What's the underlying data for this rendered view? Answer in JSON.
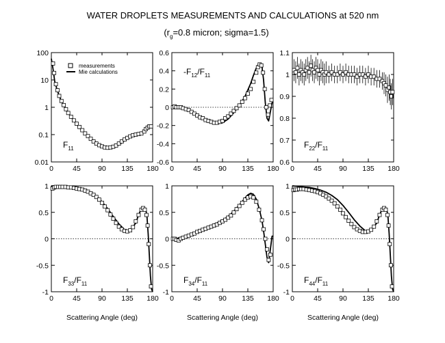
{
  "figure": {
    "title": "WATER DROPLETS MEASUREMENTS AND CALCULATIONS at 520 nm",
    "subtitle": {
      "prefix": "(r",
      "sub": "g",
      "suffix": "=0.8 micron; sigma=1.5)"
    },
    "xlabel": "Scattering Angle (deg)",
    "legend": {
      "measurements": "measurements",
      "calculations": "Mie calculations",
      "placement": "top-right of first panel"
    },
    "colors": {
      "ink": "#000000",
      "background": "#ffffff"
    }
  },
  "chart_data": [
    {
      "id": "F11",
      "type": "scatter",
      "label": {
        "main": "F",
        "sub": "11",
        "tail": "",
        "tailsub": ""
      },
      "xlim": [
        0,
        180
      ],
      "xticks": [
        0,
        45,
        90,
        135,
        180
      ],
      "ylog": true,
      "ylim": [
        0.01,
        100
      ],
      "yticks": [
        0.01,
        0.1,
        1,
        10,
        100
      ],
      "ytick_labels": [
        "0.01",
        "0.1",
        "1",
        "10",
        "100"
      ],
      "zero_line": false,
      "calc": {
        "x": [
          0,
          3,
          6,
          10,
          15,
          20,
          30,
          40,
          50,
          60,
          70,
          80,
          90,
          100,
          110,
          120,
          130,
          140,
          150,
          155,
          160,
          165,
          170,
          175,
          180
        ],
        "y": [
          60,
          25,
          9,
          4.5,
          2.3,
          1.4,
          0.62,
          0.32,
          0.18,
          0.11,
          0.072,
          0.05,
          0.038,
          0.033,
          0.034,
          0.042,
          0.06,
          0.08,
          0.1,
          0.11,
          0.12,
          0.14,
          0.18,
          0.2,
          0.2
        ]
      },
      "meas": {
        "x": [
          3,
          5,
          8,
          11,
          14,
          18,
          22,
          26,
          30,
          35,
          40,
          45,
          50,
          55,
          60,
          65,
          70,
          75,
          80,
          85,
          90,
          95,
          100,
          105,
          110,
          115,
          120,
          125,
          130,
          135,
          140,
          145,
          150,
          155,
          160,
          165,
          168,
          171,
          174,
          177
        ],
        "y": [
          40,
          18,
          7,
          4.2,
          2.6,
          1.7,
          1.2,
          0.85,
          0.62,
          0.45,
          0.33,
          0.25,
          0.19,
          0.145,
          0.11,
          0.088,
          0.07,
          0.056,
          0.047,
          0.041,
          0.037,
          0.034,
          0.033,
          0.034,
          0.036,
          0.04,
          0.047,
          0.056,
          0.066,
          0.076,
          0.086,
          0.095,
          0.1,
          0.105,
          0.11,
          0.13,
          0.16,
          0.18,
          0.2,
          0.2
        ]
      }
    },
    {
      "id": "F12",
      "type": "scatter",
      "label": {
        "main": "-F",
        "sub": "12",
        "tail": "/F",
        "tailsub": "11"
      },
      "xlim": [
        0,
        180
      ],
      "xticks": [
        0,
        45,
        90,
        135,
        180
      ],
      "ylog": false,
      "ylim": [
        -0.6,
        0.6
      ],
      "yticks": [
        -0.6,
        -0.4,
        -0.2,
        0,
        0.2,
        0.4,
        0.6
      ],
      "ytick_labels": [
        "-0.6",
        "-0.4",
        "-0.2",
        "0",
        "0.2",
        "0.4",
        "0.6"
      ],
      "zero_line": true,
      "calc": {
        "x": [
          0,
          10,
          20,
          30,
          40,
          50,
          60,
          70,
          80,
          90,
          100,
          110,
          120,
          130,
          140,
          145,
          150,
          155,
          158,
          160,
          163,
          166,
          169,
          172,
          175,
          178,
          180
        ],
        "y": [
          0,
          0,
          -0.01,
          -0.03,
          -0.06,
          -0.1,
          -0.13,
          -0.16,
          -0.18,
          -0.17,
          -0.13,
          -0.06,
          0.02,
          0.12,
          0.26,
          0.35,
          0.43,
          0.48,
          0.48,
          0.45,
          0.3,
          0.05,
          -0.12,
          -0.15,
          -0.05,
          0.05,
          0.05
        ]
      },
      "meas": {
        "x": [
          2,
          5,
          8,
          12,
          16,
          20,
          25,
          30,
          35,
          40,
          45,
          50,
          55,
          60,
          65,
          70,
          75,
          80,
          85,
          90,
          95,
          100,
          105,
          110,
          115,
          120,
          125,
          130,
          135,
          140,
          145,
          150,
          153,
          156,
          159,
          162,
          165,
          168,
          171,
          174,
          177
        ],
        "y": [
          0,
          0.01,
          0,
          0,
          0,
          -0.01,
          -0.02,
          -0.03,
          -0.05,
          -0.07,
          -0.09,
          -0.11,
          -0.12,
          -0.14,
          -0.15,
          -0.16,
          -0.17,
          -0.17,
          -0.16,
          -0.15,
          -0.12,
          -0.1,
          -0.07,
          -0.04,
          -0.01,
          0.02,
          0.06,
          0.1,
          0.15,
          0.2,
          0.28,
          0.38,
          0.44,
          0.47,
          0.46,
          0.38,
          0.2,
          0,
          -0.08,
          0.02,
          0.08
        ]
      }
    },
    {
      "id": "F22",
      "type": "scatter",
      "label": {
        "main": "F",
        "sub": "22",
        "tail": "/F",
        "tailsub": "11"
      },
      "xlim": [
        0,
        180
      ],
      "xticks": [
        0,
        45,
        90,
        135,
        180
      ],
      "ylog": false,
      "ylim": [
        0.6,
        1.1
      ],
      "yticks": [
        0.6,
        0.7,
        0.8,
        0.9,
        1.0,
        1.1
      ],
      "ytick_labels": [
        "0.6",
        "0.7",
        "0.8",
        "0.9",
        "1",
        "1.1"
      ],
      "zero_line": false,
      "calc": {
        "x": [],
        "y": []
      },
      "meas": {
        "x": [
          3,
          6,
          9,
          12,
          15,
          18,
          21,
          24,
          27,
          30,
          33,
          36,
          39,
          42,
          45,
          48,
          51,
          54,
          57,
          60,
          65,
          70,
          75,
          80,
          85,
          90,
          95,
          100,
          105,
          110,
          115,
          120,
          125,
          130,
          135,
          140,
          145,
          150,
          155,
          160,
          163,
          166,
          169,
          172,
          174,
          176,
          178
        ],
        "y": [
          1.02,
          1.01,
          1.03,
          1.0,
          1.02,
          1.01,
          1.0,
          1.02,
          1.03,
          1.01,
          1.04,
          1.02,
          1.01,
          1.03,
          1.02,
          1.0,
          1.02,
          1.01,
          1.0,
          1.01,
          1.0,
          1.01,
          1.0,
          1.0,
          1.01,
          1.0,
          1.01,
          1.0,
          1.0,
          1.0,
          0.99,
          1.0,
          1.0,
          0.99,
          1.0,
          0.99,
          0.99,
          0.98,
          0.98,
          0.97,
          0.96,
          0.95,
          0.93,
          0.94,
          0.92,
          0.9,
          0.92
        ],
        "err": [
          0.05,
          0.05,
          0.05,
          0.05,
          0.05,
          0.05,
          0.05,
          0.05,
          0.05,
          0.05,
          0.05,
          0.05,
          0.05,
          0.05,
          0.05,
          0.05,
          0.05,
          0.05,
          0.05,
          0.05,
          0.04,
          0.04,
          0.04,
          0.04,
          0.04,
          0.04,
          0.04,
          0.04,
          0.04,
          0.04,
          0.04,
          0.04,
          0.04,
          0.04,
          0.04,
          0.04,
          0.04,
          0.04,
          0.04,
          0.04,
          0.05,
          0.05,
          0.06,
          0.06,
          0.06,
          0.06,
          0.06
        ]
      }
    },
    {
      "id": "F33",
      "type": "scatter",
      "label": {
        "main": "F",
        "sub": "33",
        "tail": "/F",
        "tailsub": "11"
      },
      "xlim": [
        0,
        180
      ],
      "xticks": [
        0,
        45,
        90,
        135,
        180
      ],
      "ylog": false,
      "ylim": [
        -1,
        1
      ],
      "yticks": [
        -1,
        -0.5,
        0,
        0.5,
        1
      ],
      "ytick_labels": [
        "-1",
        "-0.5",
        "0",
        "0.5",
        "1"
      ],
      "zero_line": true,
      "calc": {
        "x": [
          0,
          10,
          20,
          30,
          40,
          50,
          60,
          70,
          80,
          90,
          100,
          110,
          120,
          130,
          140,
          150,
          155,
          160,
          165,
          168,
          170,
          172,
          174,
          176,
          178,
          180
        ],
        "y": [
          1,
          1,
          0.99,
          0.98,
          0.97,
          0.95,
          0.92,
          0.87,
          0.8,
          0.7,
          0.57,
          0.42,
          0.28,
          0.17,
          0.15,
          0.3,
          0.45,
          0.57,
          0.6,
          0.55,
          0.4,
          0.1,
          -0.3,
          -0.7,
          -0.95,
          -1
        ]
      },
      "meas": {
        "x": [
          2,
          5,
          8,
          12,
          16,
          20,
          25,
          30,
          35,
          40,
          45,
          50,
          55,
          60,
          65,
          70,
          75,
          80,
          85,
          90,
          95,
          100,
          105,
          110,
          115,
          120,
          125,
          130,
          135,
          140,
          145,
          150,
          155,
          160,
          163,
          166,
          169,
          171,
          173,
          175,
          177
        ],
        "y": [
          0.95,
          0.97,
          0.98,
          0.98,
          0.98,
          0.98,
          0.98,
          0.97,
          0.97,
          0.96,
          0.95,
          0.94,
          0.93,
          0.91,
          0.89,
          0.86,
          0.83,
          0.79,
          0.74,
          0.68,
          0.61,
          0.54,
          0.46,
          0.38,
          0.3,
          0.23,
          0.18,
          0.15,
          0.14,
          0.16,
          0.22,
          0.33,
          0.45,
          0.55,
          0.58,
          0.55,
          0.45,
          0.25,
          -0.1,
          -0.5,
          -0.9
        ]
      }
    },
    {
      "id": "F34",
      "type": "scatter",
      "label": {
        "main": "F",
        "sub": "34",
        "tail": "/F",
        "tailsub": "11"
      },
      "xlim": [
        0,
        180
      ],
      "xticks": [
        0,
        45,
        90,
        135,
        180
      ],
      "ylog": false,
      "ylim": [
        -1,
        1
      ],
      "yticks": [
        -1,
        -0.5,
        0,
        0.5,
        1
      ],
      "ytick_labels": [
        "-1",
        "-0.5",
        "0",
        "0.5",
        "1"
      ],
      "zero_line": true,
      "calc": {
        "x": [
          0,
          10,
          20,
          30,
          40,
          50,
          60,
          70,
          80,
          90,
          100,
          110,
          120,
          130,
          135,
          140,
          145,
          150,
          155,
          160,
          163,
          166,
          169,
          172,
          175,
          178,
          180
        ],
        "y": [
          0,
          0.01,
          0.04,
          0.08,
          0.12,
          0.17,
          0.21,
          0.25,
          0.3,
          0.35,
          0.42,
          0.52,
          0.64,
          0.77,
          0.83,
          0.86,
          0.84,
          0.75,
          0.58,
          0.35,
          0.15,
          -0.1,
          -0.35,
          -0.45,
          -0.2,
          0.05,
          0.05
        ]
      },
      "meas": {
        "x": [
          2,
          5,
          8,
          12,
          16,
          20,
          25,
          30,
          35,
          40,
          45,
          50,
          55,
          60,
          65,
          70,
          75,
          80,
          85,
          90,
          95,
          100,
          105,
          110,
          115,
          120,
          125,
          130,
          135,
          140,
          145,
          150,
          155,
          160,
          163,
          166,
          169,
          172,
          175
        ],
        "y": [
          0,
          0,
          -0.02,
          -0.03,
          0,
          0.02,
          0.04,
          0.06,
          0.08,
          0.1,
          0.13,
          0.15,
          0.17,
          0.19,
          0.21,
          0.23,
          0.25,
          0.27,
          0.3,
          0.33,
          0.36,
          0.4,
          0.44,
          0.5,
          0.56,
          0.62,
          0.68,
          0.74,
          0.78,
          0.8,
          0.78,
          0.7,
          0.55,
          0.35,
          0.18,
          0,
          -0.2,
          -0.4,
          -0.3
        ]
      }
    },
    {
      "id": "F44",
      "type": "scatter",
      "label": {
        "main": "F",
        "sub": "44",
        "tail": "/F",
        "tailsub": "11"
      },
      "xlim": [
        0,
        180
      ],
      "xticks": [
        0,
        45,
        90,
        135,
        180
      ],
      "ylog": false,
      "ylim": [
        -1,
        1
      ],
      "yticks": [
        -1,
        -0.5,
        0,
        0.5,
        1
      ],
      "ytick_labels": [
        "-1",
        "-0.5",
        "0",
        "0.5",
        "1"
      ],
      "zero_line": true,
      "calc": {
        "x": [
          0,
          10,
          20,
          30,
          40,
          50,
          60,
          70,
          80,
          90,
          100,
          110,
          120,
          130,
          140,
          150,
          155,
          160,
          165,
          168,
          170,
          172,
          174,
          176,
          178,
          180
        ],
        "y": [
          1,
          0.99,
          0.98,
          0.97,
          0.95,
          0.92,
          0.88,
          0.82,
          0.74,
          0.63,
          0.5,
          0.36,
          0.24,
          0.15,
          0.15,
          0.3,
          0.45,
          0.57,
          0.6,
          0.55,
          0.4,
          0.1,
          -0.3,
          -0.7,
          -0.95,
          -1
        ]
      },
      "meas": {
        "x": [
          2,
          5,
          8,
          12,
          16,
          20,
          25,
          30,
          35,
          40,
          45,
          50,
          55,
          60,
          65,
          70,
          75,
          80,
          85,
          90,
          95,
          100,
          105,
          110,
          115,
          120,
          125,
          130,
          135,
          140,
          145,
          150,
          155,
          160,
          163,
          166,
          169,
          171,
          173,
          175,
          177
        ],
        "y": [
          0.92,
          0.93,
          0.93,
          0.94,
          0.94,
          0.94,
          0.93,
          0.92,
          0.91,
          0.9,
          0.88,
          0.86,
          0.83,
          0.8,
          0.76,
          0.72,
          0.67,
          0.61,
          0.55,
          0.48,
          0.41,
          0.34,
          0.28,
          0.22,
          0.18,
          0.15,
          0.13,
          0.13,
          0.14,
          0.17,
          0.23,
          0.33,
          0.45,
          0.55,
          0.58,
          0.55,
          0.45,
          0.25,
          -0.1,
          -0.5,
          -0.9
        ]
      }
    }
  ]
}
